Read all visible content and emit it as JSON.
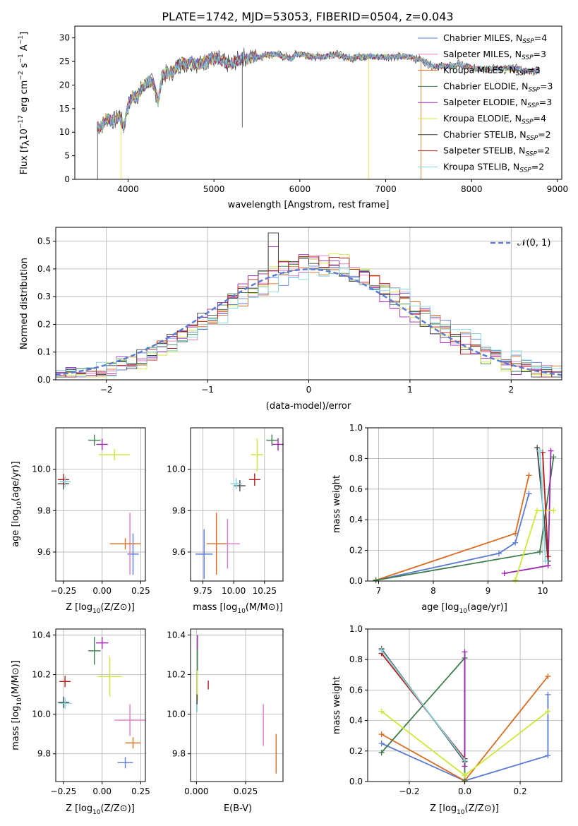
{
  "figure_title": "PLATE=1742, MJD=53053, FIBERID=0504, z=0.043",
  "colors": [
    "#5b7bd5",
    "#e377c2",
    "#d96d22",
    "#3d7d4a",
    "#9c27b0",
    "#cde83a",
    "#444444",
    "#b71c1c",
    "#7fd8e0"
  ],
  "chart_data": [
    {
      "id": "spectrum",
      "type": "line",
      "xlabel": "wavelength [Angstrom, rest frame]",
      "ylabel": "Flux [f_λ10^-17 erg cm^-2 s^-1 A^-1]",
      "xlim": [
        3380,
        9050
      ],
      "ylim": [
        0,
        32.5
      ],
      "xticks": [
        4000,
        5000,
        6000,
        7000,
        8000,
        9000
      ],
      "yticks": [
        0,
        5,
        10,
        15,
        20,
        25,
        30
      ],
      "grid": false,
      "legend": "top-right",
      "x": [
        3640,
        3700,
        3750,
        3800,
        3850,
        3900,
        3950,
        4000,
        4050,
        4100,
        4150,
        4200,
        4250,
        4300,
        4350,
        4400,
        4450,
        4500,
        4550,
        4600,
        4650,
        4700,
        4750,
        4800,
        4850,
        4900,
        4950,
        5000,
        5050,
        5100,
        5150,
        5200,
        5250,
        5300,
        5350,
        5400,
        5450,
        5500,
        5550,
        5600,
        5650,
        5700,
        5750,
        5800,
        5850,
        5900,
        5950,
        6000,
        6050,
        6100,
        6150,
        6200,
        6250,
        6300,
        6350,
        6400,
        6450,
        6500,
        6550,
        6600,
        6650,
        6700,
        6750,
        6800,
        6850,
        6900,
        6950,
        7000,
        7050,
        7100,
        7150,
        7200,
        7250,
        7300,
        7350,
        7400,
        7450,
        7500,
        7550,
        7600,
        7650,
        7700,
        7750,
        7800,
        7850,
        7900,
        7950,
        8000,
        8050,
        8100,
        8150,
        8200,
        8250,
        8300,
        8350,
        8400,
        8450,
        8500,
        8550,
        8600,
        8650,
        8700,
        8750,
        8800
      ],
      "flux": [
        11,
        11.5,
        13,
        12.5,
        12.5,
        13.5,
        11,
        15.5,
        17.5,
        17.5,
        19,
        20,
        21,
        20,
        16.5,
        22,
        22.5,
        22.5,
        23.5,
        24.5,
        24.5,
        24.5,
        25,
        24.5,
        24.5,
        25,
        25.5,
        25.5,
        25.5,
        25,
        24.5,
        24.5,
        25,
        25.5,
        26,
        25.5,
        26,
        26,
        26,
        26.5,
        26.5,
        26.5,
        26.5,
        26,
        26,
        25.5,
        26.5,
        26.5,
        26.5,
        26,
        26,
        26,
        26,
        26,
        26.5,
        26.5,
        26.5,
        26,
        26,
        25.5,
        26,
        26,
        26,
        26,
        26,
        26,
        26,
        26,
        26,
        26,
        26,
        26,
        26,
        26,
        25.5,
        25.5,
        25,
        24.5,
        24,
        24,
        24,
        24,
        24,
        24,
        24.5,
        24,
        24,
        23.5,
        23.5,
        23.5,
        23.5,
        23.5,
        23.5,
        23.5,
        23.5,
        23.5,
        23.5,
        23.5,
        23.5,
        23,
        23,
        23,
        23,
        23
      ],
      "series_names": [
        "Chabrier MILES, N_SSP=4",
        "Salpeter MILES, N_SSP=3",
        "Kroupa MILES, N_SSP=3",
        "Chabrier ELODIE, N_SSP=3",
        "Salpeter ELODIE, N_SSP=3",
        "Kroupa ELODIE, N_SSP=4",
        "Chabrier STELIB, N_SSP=2",
        "Salpeter STELIB, N_SSP=2",
        "Kroupa STELIB, N_SSP=2"
      ],
      "legend_labels": [
        {
          "name": "Chabrier MILES, N",
          "sub": "SSP",
          "val": "=4"
        },
        {
          "name": "Salpeter MILES, N",
          "sub": "SSP",
          "val": "=3"
        },
        {
          "name": "Kroupa MILES, N",
          "sub": "SSP",
          "val": "=3"
        },
        {
          "name": "Chabrier ELODIE, N",
          "sub": "SSP",
          "val": "=3"
        },
        {
          "name": "Salpeter ELODIE, N",
          "sub": "SSP",
          "val": "=3"
        },
        {
          "name": "Kroupa ELODIE, N",
          "sub": "SSP",
          "val": "=4"
        },
        {
          "name": "Chabrier STELIB, N",
          "sub": "SSP",
          "val": "=2"
        },
        {
          "name": "Salpeter STELIB, N",
          "sub": "SSP",
          "val": "=2"
        },
        {
          "name": "Kroupa STELIB, N",
          "sub": "SSP",
          "val": "=2"
        }
      ]
    },
    {
      "id": "residuals",
      "type": "area",
      "xlabel": "(data-model)/error",
      "ylabel": "Normed distribution",
      "xlim": [
        -2.5,
        2.5
      ],
      "ylim": [
        0,
        0.55
      ],
      "xticks": [
        -2,
        -1,
        0,
        1,
        2
      ],
      "yticks": [
        0.0,
        0.1,
        0.2,
        0.3,
        0.4,
        0.5
      ],
      "grid": true,
      "legend": "top-right",
      "legend_label": "𝒩(0, 1)",
      "bin_width": 0.1
    },
    {
      "id": "age_vs_Z",
      "type": "scatter",
      "xlabel": "Z [log10(Z/Z⊙)]",
      "ylabel": "age [log10(age/yr)]",
      "xlim": [
        -0.3,
        0.28
      ],
      "ylim": [
        9.46,
        10.2
      ],
      "xticks": [
        -0.25,
        0.0,
        0.25
      ],
      "yticks": [
        9.6,
        9.8,
        10.0
      ],
      "grid": true,
      "points": [
        {
          "x": 0.2,
          "y": 9.59,
          "xerr": 0.03,
          "yerr": 0.1
        },
        {
          "x": 0.18,
          "y": 9.64,
          "xerr": 0.0,
          "yerr": 0.15
        },
        {
          "x": 0.15,
          "y": 9.64,
          "xerr": 0.1,
          "yerr": 0.0
        },
        {
          "x": -0.05,
          "y": 10.14,
          "xerr": 0.04,
          "yerr": 0.01
        },
        {
          "x": 0.0,
          "y": 10.12,
          "xerr": 0.0,
          "yerr": 0.0
        },
        {
          "x": 0.08,
          "y": 10.07,
          "xerr": 0.1,
          "yerr": 0.0
        },
        {
          "x": -0.25,
          "y": 9.93,
          "xerr": 0.0,
          "yerr": 0.0
        },
        {
          "x": -0.25,
          "y": 9.95,
          "xerr": 0.0,
          "yerr": 0.0
        },
        {
          "x": -0.24,
          "y": 9.94,
          "xerr": 0.0,
          "yerr": 0.0
        }
      ]
    },
    {
      "id": "age_vs_mass",
      "type": "scatter",
      "xlabel": "mass [log10(M/M⊙)]",
      "ylabel": "",
      "xlim": [
        9.65,
        10.4
      ],
      "ylim": [
        9.46,
        10.2
      ],
      "xticks": [
        9.75,
        10.0,
        10.25
      ],
      "yticks": [
        9.6,
        9.8,
        10.0
      ],
      "grid": true,
      "points": [
        {
          "x": 9.76,
          "y": 9.59,
          "xerr": 0.07,
          "yerr": 0.12
        },
        {
          "x": 9.95,
          "y": 9.64,
          "xerr": 0.1,
          "yerr": 0.12
        },
        {
          "x": 9.86,
          "y": 9.64,
          "xerr": 0.08,
          "yerr": 0.15
        },
        {
          "x": 10.31,
          "y": 10.14,
          "xerr": 0.04,
          "yerr": 0.02
        },
        {
          "x": 10.36,
          "y": 10.12,
          "xerr": 0.03,
          "yerr": 0.03
        },
        {
          "x": 10.19,
          "y": 10.07,
          "xerr": 0.05,
          "yerr": 0.08
        },
        {
          "x": 10.05,
          "y": 9.92,
          "xerr": 0.02,
          "yerr": 0.02
        },
        {
          "x": 10.17,
          "y": 9.95,
          "xerr": 0.02,
          "yerr": 0.03
        },
        {
          "x": 10.02,
          "y": 9.93,
          "xerr": 0.01,
          "yerr": 0.02
        }
      ]
    },
    {
      "id": "weight_vs_age",
      "type": "line",
      "xlabel": "age [log10(age/yr)]",
      "ylabel": "mass weight",
      "xlim": [
        6.8,
        10.35
      ],
      "ylim": [
        0.0,
        1.0
      ],
      "xticks": [
        7,
        8,
        9,
        10
      ],
      "yticks": [
        0.0,
        0.2,
        0.4,
        0.6,
        0.8,
        1.0
      ],
      "grid": true
    },
    {
      "id": "mass_vs_Z",
      "type": "scatter",
      "xlabel": "Z [log10(Z/Z⊙)]",
      "ylabel": "mass [log10(M/M⊙)]",
      "xlim": [
        -0.3,
        0.28
      ],
      "ylim": [
        9.66,
        10.43
      ],
      "xticks": [
        -0.25,
        0.0,
        0.25
      ],
      "yticks": [
        9.8,
        10.0,
        10.2,
        10.4
      ],
      "grid": true
    },
    {
      "id": "mass_vs_ebv",
      "type": "scatter",
      "xlabel": "E(B-V)",
      "ylabel": "",
      "xlim": [
        -0.003,
        0.044
      ],
      "ylim": [
        9.66,
        10.43
      ],
      "xticks": [
        0.0,
        0.025
      ],
      "yticks": [
        9.8,
        10.0,
        10.2,
        10.4
      ],
      "grid": true
    },
    {
      "id": "weight_vs_Z",
      "type": "line",
      "xlabel": "Z [log10(Z/Z⊙)]",
      "ylabel": "mass weight",
      "xlim": [
        -0.35,
        0.35
      ],
      "ylim": [
        0.0,
        1.0
      ],
      "xticks": [
        -0.2,
        0.0,
        0.2
      ],
      "yticks": [
        0.0,
        0.2,
        0.4,
        0.6,
        0.8,
        1.0
      ],
      "grid": true
    }
  ]
}
